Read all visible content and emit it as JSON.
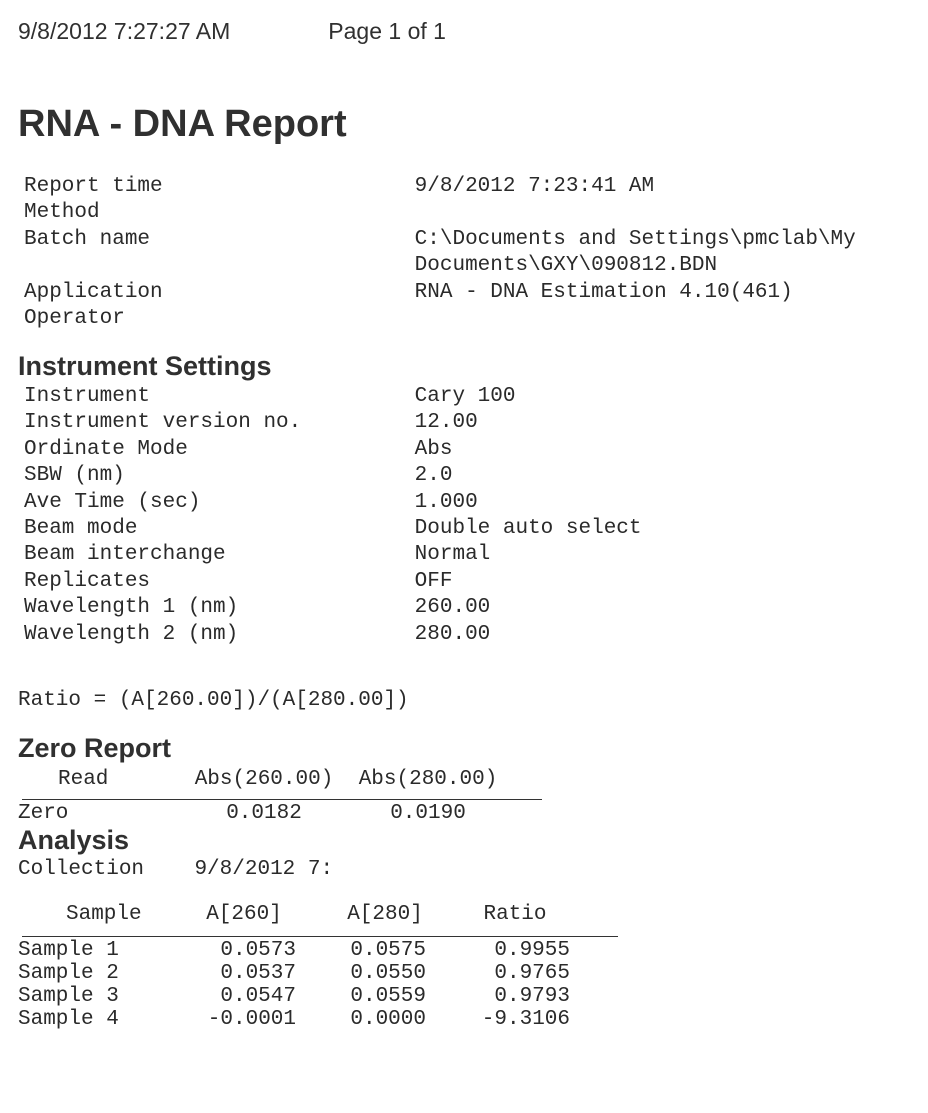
{
  "header": {
    "timestamp": "9/8/2012 7:27:27 AM",
    "page": "Page 1 of 1"
  },
  "title": "RNA - DNA Report",
  "meta": {
    "labels": {
      "report_time": "Report time",
      "method": "Method",
      "batch_name": "Batch name",
      "application": "Application",
      "operator": "Operator"
    },
    "report_time": "9/8/2012 7:23:41 AM",
    "method": "",
    "batch_name_l1": "C:\\Documents and Settings\\pmclab\\My",
    "batch_name_l2": "Documents\\GXY\\090812.BDN",
    "application": "RNA - DNA Estimation 4.10(461)",
    "operator": ""
  },
  "instrument": {
    "heading": "Instrument Settings",
    "rows": [
      {
        "label": "Instrument",
        "value": "Cary 100"
      },
      {
        "label": "Instrument version no.",
        "value": "12.00"
      },
      {
        "label": "Ordinate Mode",
        "value": "Abs"
      },
      {
        "label": "SBW (nm)",
        "value": "2.0"
      },
      {
        "label": "Ave Time (sec)",
        "value": "1.000"
      },
      {
        "label": "Beam mode",
        "value": "Double auto select"
      },
      {
        "label": "Beam interchange",
        "value": "Normal"
      },
      {
        "label": "Replicates",
        "value": "OFF"
      },
      {
        "label": "Wavelength 1 (nm)",
        "value": "260.00"
      },
      {
        "label": "Wavelength 2 (nm)",
        "value": "280.00"
      }
    ]
  },
  "ratio_expr": "Ratio = (A[260.00])/(A[280.00])",
  "zero_report": {
    "heading": "Zero Report",
    "columns": [
      "Read",
      "Abs(260.00)",
      "Abs(280.00)"
    ],
    "row_label": "Zero",
    "values": [
      "0.0182",
      "0.0190"
    ]
  },
  "analysis": {
    "heading": "Analysis",
    "collection_label": "Collection",
    "collection_value": "9/8/2012 7:",
    "columns": [
      "Sample",
      "A[260]",
      "A[280]",
      "Ratio"
    ],
    "rows": [
      {
        "name": "Sample 1",
        "a260": "0.0573",
        "a280": "0.0575",
        "ratio": "0.9955"
      },
      {
        "name": "Sample 2",
        "a260": "0.0537",
        "a280": "0.0550",
        "ratio": "0.9765"
      },
      {
        "name": "Sample 3",
        "a260": "0.0547",
        "a280": "0.0559",
        "ratio": "0.9793"
      },
      {
        "name": "Sample 4",
        "a260": "-0.0001",
        "a280": "0.0000",
        "ratio": "-9.3106"
      }
    ]
  }
}
